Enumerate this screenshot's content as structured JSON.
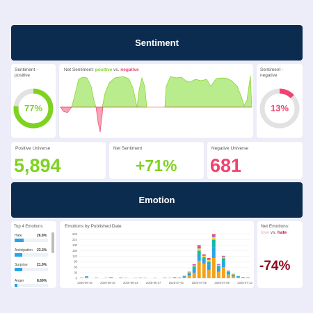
{
  "sentiment": {
    "title": "Sentiment",
    "positive_label": "Sentiment -\npositive",
    "positive_pct": "77%",
    "positive_fraction": 0.77,
    "net_label_prefix": "Net Sentiment: ",
    "net_label_pos": "positive",
    "net_label_vs": " vs. ",
    "net_label_neg": "negative",
    "negative_label": "Sentiment -\nnegative",
    "negative_pct": "13%",
    "negative_fraction": 0.13,
    "colors": {
      "positive": "#7ed321",
      "negative": "#f0436f",
      "navy": "#0c2c4f"
    }
  },
  "kpis": {
    "positive_universe_label": "Positive Universe",
    "positive_universe_value": "5,894",
    "net_sentiment_label": "Net Sentiment",
    "net_sentiment_value": "+71%",
    "negative_universe_label": "Negative Universe",
    "negative_universe_value": "681"
  },
  "emotion": {
    "title": "Emotion",
    "top4_title": "Top 4 Emotions",
    "top4": [
      {
        "name": "Hate",
        "pct": "26.8%",
        "fraction": 0.268
      },
      {
        "name": "Anticipation",
        "pct": "23.3%",
        "fraction": 0.233
      },
      {
        "name": "Surprise",
        "pct": "21.9%",
        "fraction": 0.219
      },
      {
        "name": "Anger",
        "pct": "8.69%",
        "fraction": 0.0869
      }
    ],
    "by_date_title": "Emotions by Published Date",
    "net_title": "Net Emotions:",
    "net_love": "love",
    "net_vs": " vs. ",
    "net_hate": "hate",
    "net_value": "-74%",
    "net_color": "#8b0a1e"
  },
  "chart_data": {
    "type": "bar",
    "title": "Emotions by Published Date",
    "y_ticks": [
      0,
      30,
      60,
      90,
      120,
      150,
      180,
      210,
      240
    ],
    "ylim": [
      0,
      250
    ],
    "x_tick_labels": [
      "2025-06-15",
      "2025-06-19",
      "2025-06-23",
      "2025-06-27",
      "2025-07-01",
      "2025-07-05",
      "2025-07-09",
      "2025-07-13"
    ],
    "series_colors": [
      "#f4a21d",
      "#2aa3e8",
      "#16b9a6",
      "#f7d13b",
      "#9a63d6",
      "#f0436f"
    ],
    "stacks": [
      [
        2,
        1,
        0,
        0,
        0,
        0
      ],
      [
        6,
        4,
        1,
        0,
        0,
        0
      ],
      [
        0,
        0,
        0,
        0,
        0,
        0
      ],
      [
        2,
        1,
        0,
        0,
        0,
        0
      ],
      [
        0,
        0,
        0,
        0,
        0,
        0
      ],
      [
        1,
        1,
        0,
        0,
        0,
        0
      ],
      [
        3,
        2,
        1,
        0,
        0,
        0
      ],
      [
        0,
        0,
        0,
        0,
        0,
        0
      ],
      [
        2,
        1,
        1,
        0,
        0,
        0
      ],
      [
        1,
        1,
        0,
        0,
        0,
        0
      ],
      [
        0,
        0,
        0,
        0,
        0,
        0
      ],
      [
        1,
        1,
        0,
        0,
        0,
        0
      ],
      [
        2,
        1,
        0,
        0,
        0,
        0
      ],
      [
        1,
        1,
        0,
        0,
        0,
        0
      ],
      [
        0,
        0,
        0,
        0,
        0,
        0
      ],
      [
        1,
        1,
        0,
        0,
        0,
        0
      ],
      [
        0,
        0,
        0,
        0,
        0,
        0
      ],
      [
        2,
        1,
        0,
        0,
        0,
        0
      ],
      [
        1,
        1,
        0,
        0,
        0,
        0
      ],
      [
        3,
        2,
        1,
        0,
        0,
        0
      ],
      [
        2,
        1,
        1,
        0,
        0,
        0
      ],
      [
        6,
        4,
        2,
        1,
        1,
        0
      ],
      [
        14,
        10,
        6,
        3,
        2,
        1
      ],
      [
        30,
        20,
        14,
        6,
        4,
        3
      ],
      [
        95,
        30,
        25,
        12,
        10,
        8
      ],
      [
        80,
        20,
        14,
        8,
        5,
        3
      ],
      [
        45,
        30,
        15,
        10,
        6,
        4
      ],
      [
        110,
        60,
        40,
        15,
        8,
        7
      ],
      [
        35,
        20,
        12,
        5,
        3,
        2
      ],
      [
        60,
        30,
        18,
        8,
        4,
        2
      ],
      [
        20,
        10,
        6,
        3,
        2,
        1
      ],
      [
        10,
        6,
        4,
        2,
        1,
        1
      ],
      [
        6,
        4,
        2,
        1,
        0,
        0
      ],
      [
        3,
        2,
        1,
        0,
        0,
        0
      ],
      [
        2,
        1,
        1,
        0,
        0,
        0
      ]
    ]
  }
}
